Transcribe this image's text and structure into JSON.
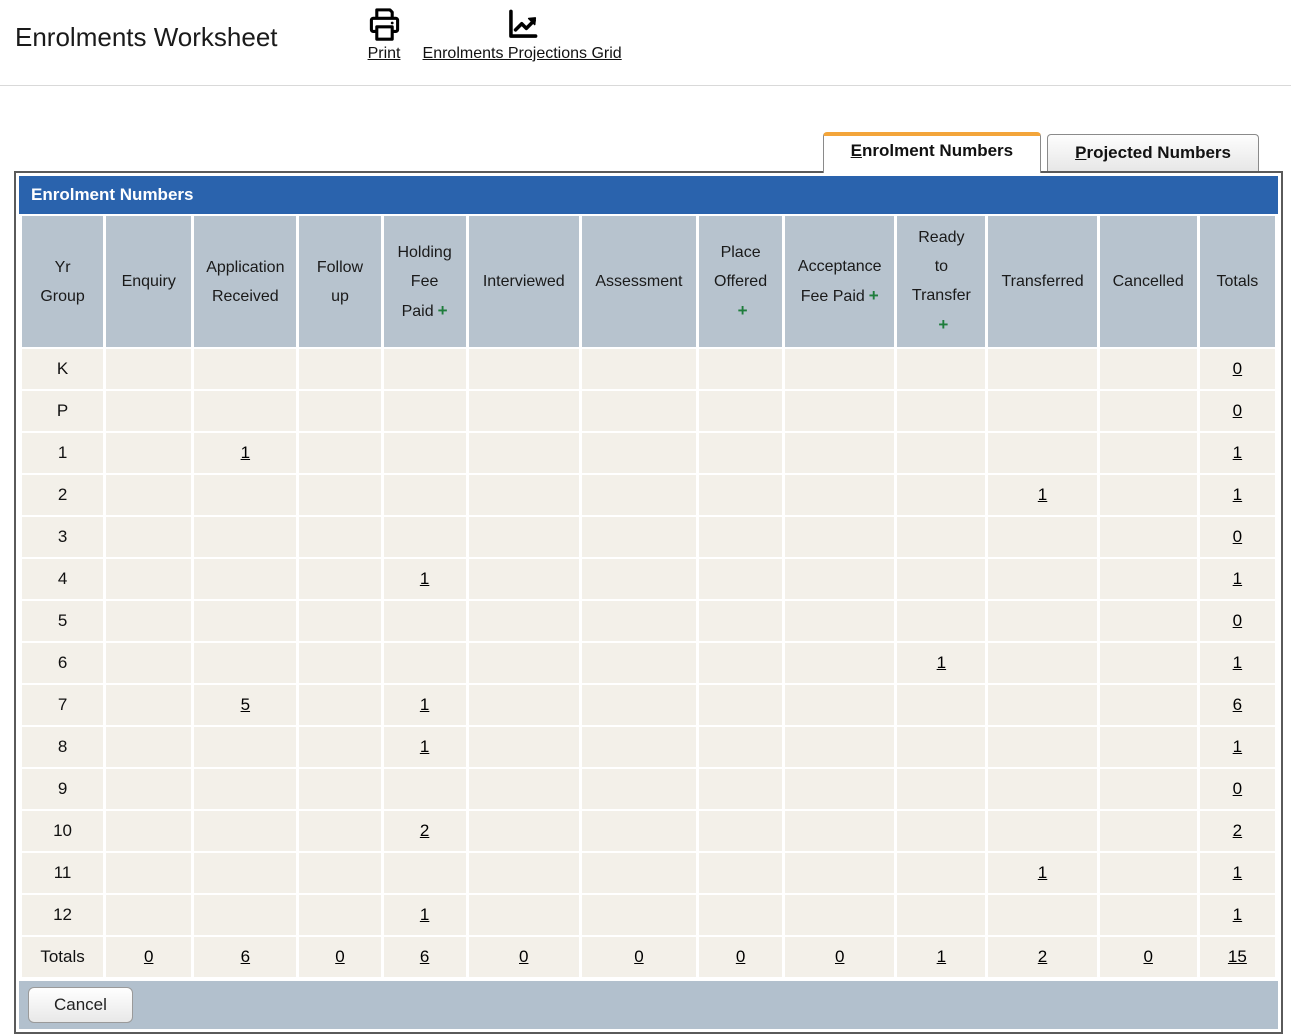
{
  "header": {
    "title": "Enrolments Worksheet",
    "print_label": "Print",
    "projections_label": "Enrolments Projections Grid"
  },
  "tabs": [
    {
      "label": "Enrolment Numbers",
      "active": true
    },
    {
      "label": "Projected Numbers",
      "active": false
    }
  ],
  "panel_title": "Enrolment Numbers",
  "table": {
    "columns": [
      {
        "label": "Yr Group",
        "lines": [
          "Yr",
          "Group"
        ],
        "plus": false
      },
      {
        "label": "Enquiry",
        "lines": [
          "Enquiry"
        ],
        "plus": false
      },
      {
        "label": "Application Received",
        "lines": [
          "Application",
          "Received"
        ],
        "plus": false
      },
      {
        "label": "Follow up",
        "lines": [
          "Follow",
          "up"
        ],
        "plus": false
      },
      {
        "label": "Holding Fee Paid",
        "lines": [
          "Holding",
          "Fee",
          "Paid +"
        ],
        "plus": true
      },
      {
        "label": "Interviewed",
        "lines": [
          "Interviewed"
        ],
        "plus": false
      },
      {
        "label": "Assessment",
        "lines": [
          "Assessment"
        ],
        "plus": false
      },
      {
        "label": "Place Offered",
        "lines": [
          "Place",
          "Offered",
          "+"
        ],
        "plus": true
      },
      {
        "label": "Acceptance Fee Paid",
        "lines": [
          "Acceptance",
          "Fee Paid +"
        ],
        "plus": true
      },
      {
        "label": "Ready to Transfer",
        "lines": [
          "Ready",
          "to",
          "Transfer",
          "+"
        ],
        "plus": true
      },
      {
        "label": "Transferred",
        "lines": [
          "Transferred"
        ],
        "plus": false
      },
      {
        "label": "Cancelled",
        "lines": [
          "Cancelled"
        ],
        "plus": false
      },
      {
        "label": "Totals",
        "lines": [
          "Totals"
        ],
        "plus": false
      }
    ],
    "rows": [
      {
        "yr": "K",
        "cells": [
          "",
          "",
          "",
          "",
          "",
          "",
          "",
          "",
          "",
          "",
          ""
        ],
        "total": "0"
      },
      {
        "yr": "P",
        "cells": [
          "",
          "",
          "",
          "",
          "",
          "",
          "",
          "",
          "",
          "",
          ""
        ],
        "total": "0"
      },
      {
        "yr": "1",
        "cells": [
          "",
          "1",
          "",
          "",
          "",
          "",
          "",
          "",
          "",
          "",
          ""
        ],
        "total": "1"
      },
      {
        "yr": "2",
        "cells": [
          "",
          "",
          "",
          "",
          "",
          "",
          "",
          "",
          "",
          "1",
          ""
        ],
        "total": "1"
      },
      {
        "yr": "3",
        "cells": [
          "",
          "",
          "",
          "",
          "",
          "",
          "",
          "",
          "",
          "",
          ""
        ],
        "total": "0"
      },
      {
        "yr": "4",
        "cells": [
          "",
          "",
          "",
          "1",
          "",
          "",
          "",
          "",
          "",
          "",
          ""
        ],
        "total": "1"
      },
      {
        "yr": "5",
        "cells": [
          "",
          "",
          "",
          "",
          "",
          "",
          "",
          "",
          "",
          "",
          ""
        ],
        "total": "0"
      },
      {
        "yr": "6",
        "cells": [
          "",
          "",
          "",
          "",
          "",
          "",
          "",
          "",
          "1",
          "",
          ""
        ],
        "total": "1"
      },
      {
        "yr": "7",
        "cells": [
          "",
          "5",
          "",
          "1",
          "",
          "",
          "",
          "",
          "",
          "",
          ""
        ],
        "total": "6"
      },
      {
        "yr": "8",
        "cells": [
          "",
          "",
          "",
          "1",
          "",
          "",
          "",
          "",
          "",
          "",
          ""
        ],
        "total": "1"
      },
      {
        "yr": "9",
        "cells": [
          "",
          "",
          "",
          "",
          "",
          "",
          "",
          "",
          "",
          "",
          ""
        ],
        "total": "0"
      },
      {
        "yr": "10",
        "cells": [
          "",
          "",
          "",
          "2",
          "",
          "",
          "",
          "",
          "",
          "",
          ""
        ],
        "total": "2"
      },
      {
        "yr": "11",
        "cells": [
          "",
          "",
          "",
          "",
          "",
          "",
          "",
          "",
          "",
          "1",
          ""
        ],
        "total": "1"
      },
      {
        "yr": "12",
        "cells": [
          "",
          "",
          "",
          "1",
          "",
          "",
          "",
          "",
          "",
          "",
          ""
        ],
        "total": "1"
      }
    ],
    "totals_row": {
      "label": "Totals",
      "cells": [
        "0",
        "6",
        "0",
        "6",
        "0",
        "0",
        "0",
        "0",
        "1",
        "2",
        "0"
      ],
      "total": "15"
    }
  },
  "footer": {
    "cancel_label": "Cancel"
  },
  "colors": {
    "panel_header_blue": "#2a63ad",
    "tab_accent_orange": "#f3a53a",
    "plus_green": "#1e7d3c",
    "header_cell_gray": "#b7c3ce",
    "data_cell_cream": "#f3f0e9",
    "footer_bar_gray": "#b2c0cd"
  }
}
